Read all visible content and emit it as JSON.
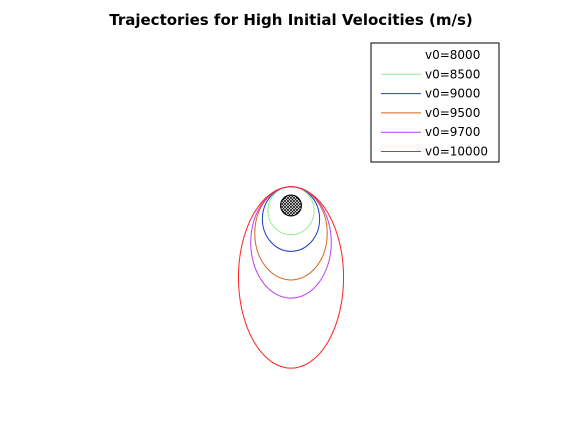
{
  "chart_data": {
    "type": "line",
    "title": "Trajectories for High Initial Velocities (m/s)",
    "xlabel": "",
    "ylabel": "",
    "axes_visible": false,
    "grid": false,
    "aspect": "equal",
    "legend_position": "top-right",
    "central_body": {
      "kind": "circle",
      "radius": 6.4,
      "fill": "hatched",
      "color": "#000000"
    },
    "launch_point": [
      0,
      6.4
    ],
    "series": [
      {
        "name": "v0=8000",
        "color": "#ffffff",
        "y_min": -6.4,
        "half_width": 6.4
      },
      {
        "name": "v0=8500",
        "color": "#90ee90",
        "y_min": -10.0,
        "half_width": 7.9
      },
      {
        "name": "v0=9000",
        "color": "#1f3fbf",
        "y_min": -15.7,
        "half_width": 9.8
      },
      {
        "name": "v0=9500",
        "color": "#d2691e",
        "y_min": -25.5,
        "half_width": 12.4
      },
      {
        "name": "v0=9700",
        "color": "#bf40ef",
        "y_min": -31.7,
        "half_width": 13.8
      },
      {
        "name": "v0=10000",
        "color": "#ff2020",
        "y_min": -55.7,
        "half_width": 18.0
      }
    ]
  }
}
